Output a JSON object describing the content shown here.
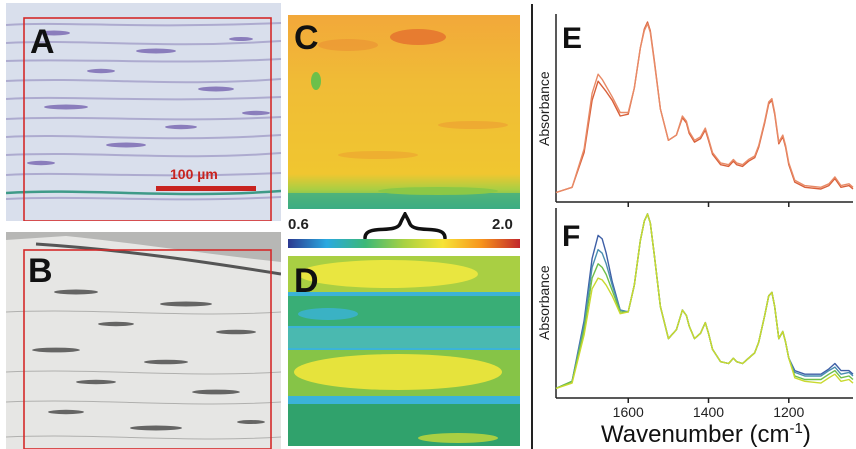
{
  "panels": {
    "a": {
      "letter": "A",
      "scalebar_label": "100 µm"
    },
    "b": {
      "letter": "B"
    },
    "c": {
      "letter": "C"
    },
    "d": {
      "letter": "D"
    },
    "e": {
      "letter": "E",
      "ylabel": "Absorbance"
    },
    "f": {
      "letter": "F",
      "ylabel": "Absorbance"
    }
  },
  "colorbar": {
    "min_label": "0.6",
    "max_label": "2.0"
  },
  "colors": {
    "scalebar": "#c8231f",
    "roi_box": "#d42a2a",
    "spectrum_e_1": "#d9603a",
    "spectrum_e_2": "#e88a66",
    "spectrum_f_blue": "#3e5fa6",
    "spectrum_f_teal": "#4a8fb0",
    "spectrum_f_green": "#6fbf4a",
    "spectrum_f_yellow": "#c9d92e"
  },
  "chart_data": {
    "type": "line",
    "xlabel": "Wavenumber (cm",
    "xlabel_superscript": "-1",
    "xlabel_close": ")",
    "xlim": [
      1780,
      1040
    ],
    "xticks": [
      1600,
      1400,
      1200
    ],
    "panels": [
      {
        "id": "E",
        "series": [
          {
            "x": [
              1780,
              1740,
              1710,
              1690,
              1675,
              1665,
              1655,
              1640,
              1620,
              1600,
              1585,
              1570,
              1560,
              1552,
              1545,
              1535,
              1520,
              1500,
              1480,
              1465,
              1455,
              1448,
              1435,
              1420,
              1408,
              1400,
              1390,
              1370,
              1350,
              1338,
              1330,
              1315,
              1300,
              1285,
              1275,
              1260,
              1250,
              1242,
              1235,
              1225,
              1215,
              1208,
              1200,
              1185,
              1160,
              1120,
              1100,
              1085,
              1070,
              1050,
              1040
            ],
            "y": [
              0.02,
              0.05,
              0.25,
              0.55,
              0.66,
              0.63,
              0.6,
              0.55,
              0.46,
              0.47,
              0.62,
              0.85,
              0.96,
              1.0,
              0.95,
              0.78,
              0.5,
              0.32,
              0.35,
              0.45,
              0.42,
              0.36,
              0.31,
              0.33,
              0.38,
              0.32,
              0.24,
              0.18,
              0.17,
              0.2,
              0.18,
              0.17,
              0.2,
              0.22,
              0.28,
              0.42,
              0.53,
              0.55,
              0.47,
              0.3,
              0.34,
              0.28,
              0.18,
              0.08,
              0.05,
              0.04,
              0.06,
              0.1,
              0.05,
              0.06,
              0.04
            ]
          },
          {
            "x": [
              1780,
              1740,
              1710,
              1690,
              1675,
              1665,
              1655,
              1640,
              1620,
              1600,
              1585,
              1570,
              1560,
              1552,
              1545,
              1535,
              1520,
              1500,
              1480,
              1465,
              1455,
              1448,
              1435,
              1420,
              1408,
              1400,
              1390,
              1370,
              1350,
              1338,
              1330,
              1315,
              1300,
              1285,
              1275,
              1260,
              1250,
              1242,
              1235,
              1225,
              1215,
              1208,
              1200,
              1185,
              1160,
              1120,
              1100,
              1085,
              1070,
              1050,
              1040
            ],
            "y": [
              0.02,
              0.05,
              0.27,
              0.59,
              0.7,
              0.67,
              0.63,
              0.57,
              0.48,
              0.48,
              0.62,
              0.85,
              0.95,
              0.99,
              0.94,
              0.77,
              0.5,
              0.32,
              0.35,
              0.46,
              0.43,
              0.37,
              0.32,
              0.34,
              0.39,
              0.33,
              0.25,
              0.19,
              0.18,
              0.21,
              0.19,
              0.18,
              0.21,
              0.23,
              0.29,
              0.43,
              0.54,
              0.56,
              0.48,
              0.31,
              0.35,
              0.29,
              0.19,
              0.09,
              0.06,
              0.05,
              0.07,
              0.11,
              0.06,
              0.07,
              0.05
            ]
          }
        ]
      },
      {
        "id": "F",
        "series": [
          {
            "x": [
              1780,
              1740,
              1710,
              1690,
              1675,
              1665,
              1655,
              1640,
              1620,
              1600,
              1585,
              1570,
              1560,
              1552,
              1545,
              1535,
              1520,
              1500,
              1480,
              1465,
              1455,
              1448,
              1435,
              1420,
              1408,
              1400,
              1390,
              1370,
              1350,
              1338,
              1330,
              1315,
              1300,
              1285,
              1275,
              1260,
              1250,
              1242,
              1235,
              1225,
              1215,
              1208,
              1200,
              1185,
              1160,
              1120,
              1100,
              1085,
              1070,
              1050,
              1040
            ],
            "y": [
              0.02,
              0.06,
              0.4,
              0.75,
              0.88,
              0.86,
              0.78,
              0.62,
              0.46,
              0.45,
              0.6,
              0.85,
              0.96,
              1.0,
              0.95,
              0.77,
              0.48,
              0.3,
              0.35,
              0.46,
              0.43,
              0.37,
              0.3,
              0.33,
              0.39,
              0.33,
              0.24,
              0.17,
              0.16,
              0.19,
              0.17,
              0.16,
              0.19,
              0.22,
              0.28,
              0.43,
              0.54,
              0.56,
              0.48,
              0.3,
              0.34,
              0.28,
              0.19,
              0.12,
              0.1,
              0.1,
              0.13,
              0.16,
              0.12,
              0.12,
              0.1
            ]
          },
          {
            "x": [
              1780,
              1740,
              1710,
              1690,
              1675,
              1665,
              1655,
              1640,
              1620,
              1600,
              1585,
              1570,
              1560,
              1552,
              1545,
              1535,
              1520,
              1500,
              1480,
              1465,
              1455,
              1448,
              1435,
              1420,
              1408,
              1400,
              1390,
              1370,
              1350,
              1338,
              1330,
              1315,
              1300,
              1285,
              1275,
              1260,
              1250,
              1242,
              1235,
              1225,
              1215,
              1208,
              1200,
              1185,
              1160,
              1120,
              1100,
              1085,
              1070,
              1050,
              1040
            ],
            "y": [
              0.02,
              0.06,
              0.38,
              0.7,
              0.8,
              0.78,
              0.72,
              0.6,
              0.46,
              0.45,
              0.6,
              0.85,
              0.96,
              1.0,
              0.95,
              0.77,
              0.48,
              0.3,
              0.35,
              0.46,
              0.43,
              0.37,
              0.3,
              0.33,
              0.39,
              0.33,
              0.24,
              0.17,
              0.16,
              0.19,
              0.17,
              0.16,
              0.19,
              0.22,
              0.28,
              0.43,
              0.54,
              0.56,
              0.48,
              0.3,
              0.34,
              0.28,
              0.19,
              0.11,
              0.09,
              0.09,
              0.12,
              0.14,
              0.1,
              0.11,
              0.09
            ]
          },
          {
            "x": [
              1780,
              1740,
              1710,
              1690,
              1675,
              1665,
              1655,
              1640,
              1620,
              1600,
              1585,
              1570,
              1560,
              1552,
              1545,
              1535,
              1520,
              1500,
              1480,
              1465,
              1455,
              1448,
              1435,
              1420,
              1408,
              1400,
              1390,
              1370,
              1350,
              1338,
              1330,
              1315,
              1300,
              1285,
              1275,
              1260,
              1250,
              1242,
              1235,
              1225,
              1215,
              1208,
              1200,
              1185,
              1160,
              1120,
              1100,
              1085,
              1070,
              1050,
              1040
            ],
            "y": [
              0.02,
              0.06,
              0.35,
              0.64,
              0.72,
              0.7,
              0.66,
              0.57,
              0.45,
              0.45,
              0.6,
              0.85,
              0.96,
              1.0,
              0.95,
              0.77,
              0.48,
              0.3,
              0.35,
              0.46,
              0.43,
              0.37,
              0.3,
              0.33,
              0.39,
              0.33,
              0.24,
              0.17,
              0.16,
              0.19,
              0.17,
              0.16,
              0.19,
              0.22,
              0.28,
              0.43,
              0.54,
              0.56,
              0.48,
              0.3,
              0.34,
              0.28,
              0.19,
              0.09,
              0.07,
              0.07,
              0.1,
              0.12,
              0.08,
              0.09,
              0.07
            ]
          },
          {
            "x": [
              1780,
              1740,
              1710,
              1690,
              1675,
              1665,
              1655,
              1640,
              1620,
              1600,
              1585,
              1570,
              1560,
              1552,
              1545,
              1535,
              1520,
              1500,
              1480,
              1465,
              1455,
              1448,
              1435,
              1420,
              1408,
              1400,
              1390,
              1370,
              1350,
              1338,
              1330,
              1315,
              1300,
              1285,
              1275,
              1260,
              1250,
              1242,
              1235,
              1225,
              1215,
              1208,
              1200,
              1185,
              1160,
              1120,
              1100,
              1085,
              1070,
              1050,
              1040
            ],
            "y": [
              0.02,
              0.05,
              0.32,
              0.58,
              0.64,
              0.63,
              0.6,
              0.54,
              0.44,
              0.45,
              0.6,
              0.85,
              0.96,
              1.0,
              0.95,
              0.77,
              0.48,
              0.3,
              0.35,
              0.46,
              0.43,
              0.37,
              0.3,
              0.33,
              0.39,
              0.33,
              0.24,
              0.17,
              0.16,
              0.19,
              0.17,
              0.16,
              0.19,
              0.22,
              0.28,
              0.43,
              0.54,
              0.56,
              0.48,
              0.3,
              0.34,
              0.28,
              0.19,
              0.08,
              0.06,
              0.05,
              0.08,
              0.1,
              0.06,
              0.07,
              0.05
            ]
          }
        ]
      }
    ]
  }
}
